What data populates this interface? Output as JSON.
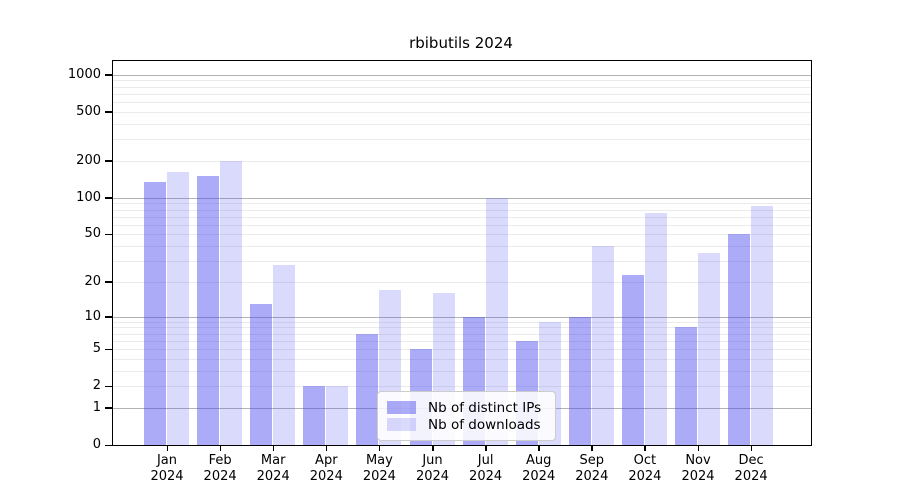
{
  "title": "rbibutils 2024",
  "colors": {
    "bar_distinct_ips": "rgba(68,68,238,0.45)",
    "bar_downloads": "rgba(68,68,238,0.20)",
    "grid_major": "#b3b3b3",
    "grid_minor": "#ebebeb",
    "axis": "#000000"
  },
  "chart_data": {
    "type": "bar",
    "title": "rbibutils 2024",
    "categories": [
      "Jan 2024",
      "Feb 2024",
      "Mar 2024",
      "Apr 2024",
      "May 2024",
      "Jun 2024",
      "Jul 2024",
      "Aug 2024",
      "Sep 2024",
      "Oct 2024",
      "Nov 2024",
      "Dec 2024"
    ],
    "series": [
      {
        "name": "Nb of distinct IPs",
        "color": "rgba(68,68,238,0.45)",
        "values": [
          134,
          150,
          13,
          2,
          7,
          5,
          10,
          6,
          10,
          23,
          8,
          50
        ]
      },
      {
        "name": "Nb of downloads",
        "color": "rgba(68,68,238,0.20)",
        "values": [
          161,
          200,
          28,
          2,
          17,
          16,
          100,
          9,
          40,
          75,
          35,
          85
        ]
      }
    ],
    "yscale": "log1p",
    "ylim": [
      0,
      1300
    ],
    "yticks": [
      1000,
      500,
      200,
      100,
      50,
      20,
      10,
      5,
      2,
      1,
      0
    ],
    "grid": true,
    "legend_position": "lower center"
  }
}
